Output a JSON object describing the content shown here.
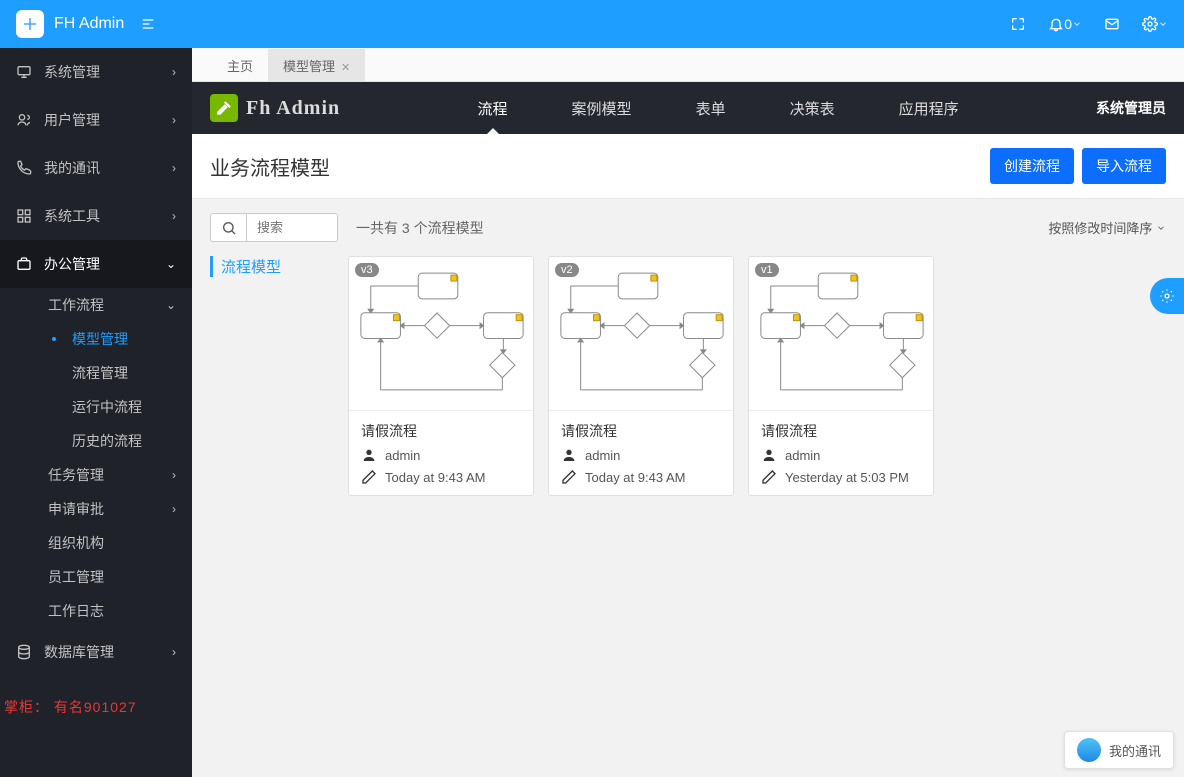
{
  "header": {
    "brand": "FH Admin",
    "notification_count": "0"
  },
  "sidebar": {
    "items": [
      {
        "icon": "monitor",
        "label": "系统管理",
        "expandable": true
      },
      {
        "icon": "users",
        "label": "用户管理",
        "expandable": true
      },
      {
        "icon": "phone",
        "label": "我的通讯",
        "expandable": true
      },
      {
        "icon": "grid",
        "label": "系统工具",
        "expandable": true
      },
      {
        "icon": "briefcase",
        "label": "办公管理",
        "expandable": true,
        "open": true,
        "active": true,
        "children": [
          {
            "label": "工作流程",
            "expandable": true,
            "open": true,
            "children": [
              {
                "label": "模型管理",
                "current": true
              },
              {
                "label": "流程管理"
              },
              {
                "label": "运行中流程"
              },
              {
                "label": "历史的流程"
              }
            ]
          },
          {
            "label": "任务管理",
            "expandable": true
          },
          {
            "label": "申请审批",
            "expandable": true
          },
          {
            "label": "组织机构"
          },
          {
            "label": "员工管理"
          },
          {
            "label": "工作日志"
          }
        ]
      },
      {
        "icon": "database",
        "label": "数据库管理",
        "expandable": true
      }
    ]
  },
  "tabs": [
    {
      "label": "主页",
      "closable": false
    },
    {
      "label": "模型管理",
      "closable": true,
      "active": true
    }
  ],
  "inner": {
    "brand": "Fh Admin",
    "nav": [
      "流程",
      "案例模型",
      "表单",
      "决策表",
      "应用程序"
    ],
    "nav_active_index": 0,
    "user_label": "系统管理员"
  },
  "page": {
    "title": "业务流程模型",
    "buttons": {
      "create": "创建流程",
      "import": "导入流程"
    },
    "search_placeholder": "搜索",
    "count_text": "一共有 3 个流程模型",
    "sort_label": "按照修改时间降序",
    "section_label": "流程模型"
  },
  "cards": [
    {
      "version": "v3",
      "title": "请假流程",
      "author": "admin",
      "edited": "Today at 9:43 AM"
    },
    {
      "version": "v2",
      "title": "请假流程",
      "author": "admin",
      "edited": "Today at 9:43 AM"
    },
    {
      "version": "v1",
      "title": "请假流程",
      "author": "admin",
      "edited": "Yesterday at 5:03 PM"
    }
  ],
  "chat_label": "我的通讯",
  "watermark": "掌柜：  有名901027",
  "colors": {
    "primary": "#1e9fff",
    "sidebar_bg": "#20222a",
    "inner_header_bg": "#24272e",
    "btn_primary": "#0d6efd",
    "accent_green": "#76b900"
  }
}
